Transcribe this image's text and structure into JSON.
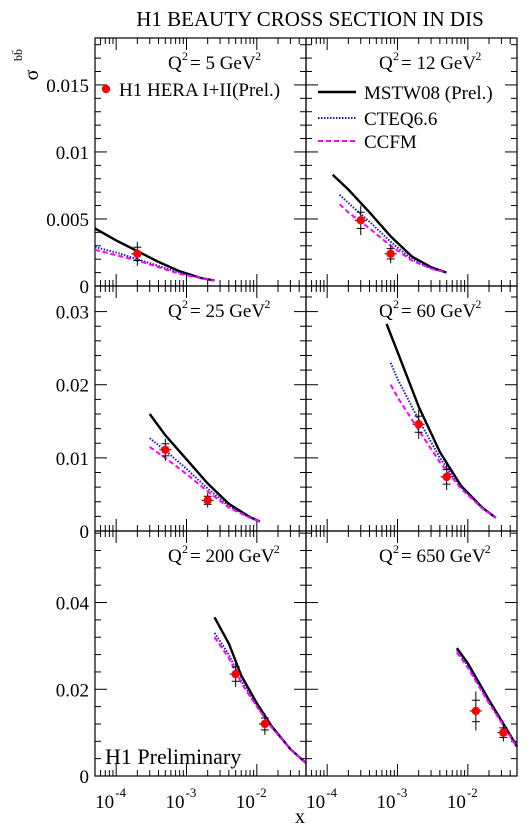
{
  "title": "H1 BEAUTY CROSS SECTION IN DIS",
  "y_symbol": "σ",
  "y_sub": "bb̄",
  "x_label": "x",
  "preliminary": "H1 Preliminary",
  "x_ticks": [
    {
      "value": 0.0001,
      "label": "10",
      "exp": "-4"
    },
    {
      "value": 0.001,
      "label": "10",
      "exp": "-3"
    },
    {
      "value": 0.01,
      "label": "10",
      "exp": "-2"
    }
  ],
  "legend": {
    "data": "H1 HERA I+II(Prel.)",
    "mstw": "MSTW08 (Prel.)",
    "cteq": "CTEQ6.6",
    "ccfm": "CCFM"
  },
  "colors": {
    "data": "#ff0000",
    "mstw": "#000000",
    "cteq": "#1a1ab4",
    "ccfm": "#ff00ff"
  },
  "chart_data": [
    {
      "type": "line",
      "panel": "Q2=5",
      "q2_text": "Q",
      "q2_exp": "2",
      "q2_rest": "= 5 GeV",
      "q2_unit_exp": "2",
      "xlim": [
        5e-05,
        0.05
      ],
      "ylim": [
        0,
        0.0185
      ],
      "y_ticks": [
        0,
        0.005,
        0.01,
        0.015
      ],
      "y_tick_labels": [
        "0",
        "0.005",
        "0.01",
        "0.015"
      ],
      "data_points": [
        {
          "x": 0.0002,
          "y": 0.0024,
          "err": 0.0009
        }
      ],
      "series": [
        {
          "name": "MSTW08 (Prel.)",
          "x": [
            5e-05,
            0.0001,
            0.0002,
            0.0004,
            0.0008,
            0.0016,
            0.0025
          ],
          "y": [
            0.0043,
            0.0034,
            0.0026,
            0.0018,
            0.0011,
            0.0006,
            0.0004
          ]
        },
        {
          "name": "CTEQ6.6",
          "x": [
            5e-05,
            0.0001,
            0.0002,
            0.0004,
            0.0008,
            0.0016,
            0.0025
          ],
          "y": [
            0.0029,
            0.0025,
            0.002,
            0.0015,
            0.001,
            0.0006,
            0.0004
          ]
        },
        {
          "name": "CCFM",
          "x": [
            5e-05,
            0.0001,
            0.0002,
            0.0004,
            0.0008,
            0.0016,
            0.0025
          ],
          "y": [
            0.0027,
            0.0023,
            0.0019,
            0.0014,
            0.0009,
            0.0006,
            0.0004
          ]
        }
      ]
    },
    {
      "type": "line",
      "panel": "Q2=12",
      "q2_text": "Q",
      "q2_exp": "2",
      "q2_rest": "= 12 GeV",
      "q2_unit_exp": "2",
      "xlim": [
        5e-05,
        0.05
      ],
      "ylim": [
        0,
        0.0185
      ],
      "y_ticks": [
        0,
        0.005,
        0.01,
        0.015
      ],
      "y_tick_labels": [],
      "data_points": [
        {
          "x": 0.0003,
          "y": 0.0049,
          "err": 0.0011
        },
        {
          "x": 0.0008,
          "y": 0.0024,
          "err": 0.0007
        }
      ],
      "series": [
        {
          "name": "MSTW08 (Prel.)",
          "x": [
            0.00012,
            0.0002,
            0.0004,
            0.0008,
            0.0016,
            0.003,
            0.005
          ],
          "y": [
            0.0083,
            0.0072,
            0.0055,
            0.0037,
            0.0022,
            0.0014,
            0.001
          ]
        },
        {
          "name": "CTEQ6.6",
          "x": [
            0.00015,
            0.0002,
            0.0004,
            0.0008,
            0.0016,
            0.003,
            0.005
          ],
          "y": [
            0.0068,
            0.0062,
            0.0048,
            0.0033,
            0.002,
            0.0013,
            0.001
          ]
        },
        {
          "name": "CCFM",
          "x": [
            0.00015,
            0.0002,
            0.0004,
            0.0008,
            0.0016,
            0.003,
            0.005
          ],
          "y": [
            0.0061,
            0.0055,
            0.0043,
            0.003,
            0.0019,
            0.0013,
            0.001
          ]
        }
      ]
    },
    {
      "type": "line",
      "panel": "Q2=25",
      "q2_text": "Q",
      "q2_exp": "2",
      "q2_rest": "= 25 GeV",
      "q2_unit_exp": "2",
      "xlim": [
        5e-05,
        0.05
      ],
      "ylim": [
        0,
        0.0335
      ],
      "y_ticks": [
        0,
        0.01,
        0.02,
        0.03
      ],
      "y_tick_labels": [
        "0",
        "0.01",
        "0.02",
        "0.03"
      ],
      "data_points": [
        {
          "x": 0.0005,
          "y": 0.0111,
          "err": 0.0015
        },
        {
          "x": 0.002,
          "y": 0.0042,
          "err": 0.001
        }
      ],
      "series": [
        {
          "name": "MSTW08 (Prel.)",
          "x": [
            0.0003,
            0.0005,
            0.001,
            0.002,
            0.004,
            0.008,
            0.011
          ],
          "y": [
            0.016,
            0.0131,
            0.0098,
            0.0065,
            0.0037,
            0.0019,
            0.0013
          ]
        },
        {
          "name": "CTEQ6.6",
          "x": [
            0.0003,
            0.0005,
            0.001,
            0.002,
            0.004,
            0.008,
            0.011
          ],
          "y": [
            0.0127,
            0.011,
            0.0085,
            0.0058,
            0.0034,
            0.0018,
            0.0013
          ]
        },
        {
          "name": "CCFM",
          "x": [
            0.0003,
            0.0005,
            0.001,
            0.002,
            0.004,
            0.008,
            0.011
          ],
          "y": [
            0.0115,
            0.01,
            0.0078,
            0.0054,
            0.0032,
            0.0018,
            0.0013
          ]
        }
      ]
    },
    {
      "type": "line",
      "panel": "Q2=60",
      "q2_text": "Q",
      "q2_exp": "2",
      "q2_rest": "= 60 GeV",
      "q2_unit_exp": "2",
      "xlim": [
        5e-05,
        0.05
      ],
      "ylim": [
        0,
        0.0335
      ],
      "y_ticks": [
        0,
        0.01,
        0.02,
        0.03
      ],
      "y_tick_labels": [],
      "data_points": [
        {
          "x": 0.002,
          "y": 0.0146,
          "err": 0.002
        },
        {
          "x": 0.005,
          "y": 0.0074,
          "err": 0.0018
        }
      ],
      "series": [
        {
          "name": "MSTW08 (Prel.)",
          "x": [
            0.0007,
            0.001,
            0.002,
            0.004,
            0.008,
            0.016,
            0.025
          ],
          "y": [
            0.0283,
            0.0245,
            0.017,
            0.0108,
            0.0062,
            0.0032,
            0.0018
          ]
        },
        {
          "name": "CTEQ6.6",
          "x": [
            0.0008,
            0.001,
            0.002,
            0.004,
            0.008,
            0.016,
            0.025
          ],
          "y": [
            0.023,
            0.0208,
            0.0152,
            0.01,
            0.006,
            0.0032,
            0.0018
          ]
        },
        {
          "name": "CCFM",
          "x": [
            0.0008,
            0.001,
            0.002,
            0.004,
            0.008,
            0.016,
            0.025
          ],
          "y": [
            0.02,
            0.0183,
            0.0138,
            0.0094,
            0.0058,
            0.0031,
            0.0018
          ]
        }
      ]
    },
    {
      "type": "line",
      "panel": "Q2=200",
      "q2_text": "Q",
      "q2_exp": "2",
      "q2_rest": "= 200 GeV",
      "q2_unit_exp": "2",
      "xlim": [
        5e-05,
        0.05
      ],
      "ylim": [
        0,
        0.0565
      ],
      "y_ticks": [
        0,
        0.02,
        0.04
      ],
      "y_tick_labels": [
        "0",
        "0.02",
        "0.04"
      ],
      "data_points": [
        {
          "x": 0.005,
          "y": 0.0235,
          "err": 0.003
        },
        {
          "x": 0.013,
          "y": 0.012,
          "err": 0.0025
        }
      ],
      "series": [
        {
          "name": "MSTW08 (Prel.)",
          "x": [
            0.0025,
            0.004,
            0.006,
            0.01,
            0.016,
            0.03,
            0.05
          ],
          "y": [
            0.0366,
            0.0305,
            0.0232,
            0.0168,
            0.0116,
            0.0062,
            0.003
          ]
        },
        {
          "name": "CTEQ6.6",
          "x": [
            0.0025,
            0.004,
            0.006,
            0.01,
            0.016,
            0.03,
            0.05
          ],
          "y": [
            0.033,
            0.028,
            0.022,
            0.0162,
            0.0114,
            0.0062,
            0.003
          ]
        },
        {
          "name": "CCFM",
          "x": [
            0.0025,
            0.004,
            0.006,
            0.01,
            0.016,
            0.03,
            0.05
          ],
          "y": [
            0.032,
            0.0272,
            0.0215,
            0.016,
            0.0113,
            0.0062,
            0.003
          ]
        }
      ]
    },
    {
      "type": "line",
      "panel": "Q2=650",
      "q2_text": "Q",
      "q2_exp": "2",
      "q2_rest": "= 650 GeV",
      "q2_unit_exp": "2",
      "xlim": [
        5e-05,
        0.05
      ],
      "ylim": [
        0,
        0.0565
      ],
      "y_ticks": [
        0,
        0.02,
        0.04
      ],
      "y_tick_labels": [],
      "data_points": [
        {
          "x": 0.013,
          "y": 0.015,
          "err": 0.0045
        },
        {
          "x": 0.032,
          "y": 0.01,
          "err": 0.002
        }
      ],
      "series": [
        {
          "name": "MSTW08 (Prel.)",
          "x": [
            0.007,
            0.01,
            0.015,
            0.02,
            0.03,
            0.05
          ],
          "y": [
            0.0295,
            0.026,
            0.021,
            0.0175,
            0.0128,
            0.0068
          ]
        },
        {
          "name": "CTEQ6.6",
          "x": [
            0.007,
            0.01,
            0.015,
            0.02,
            0.03,
            0.05
          ],
          "y": [
            0.029,
            0.0255,
            0.0205,
            0.017,
            0.0125,
            0.0066
          ]
        },
        {
          "name": "CCFM",
          "x": [
            0.007,
            0.01,
            0.015,
            0.02,
            0.03,
            0.05
          ],
          "y": [
            0.0285,
            0.025,
            0.0202,
            0.0168,
            0.0124,
            0.0066
          ]
        }
      ]
    }
  ]
}
